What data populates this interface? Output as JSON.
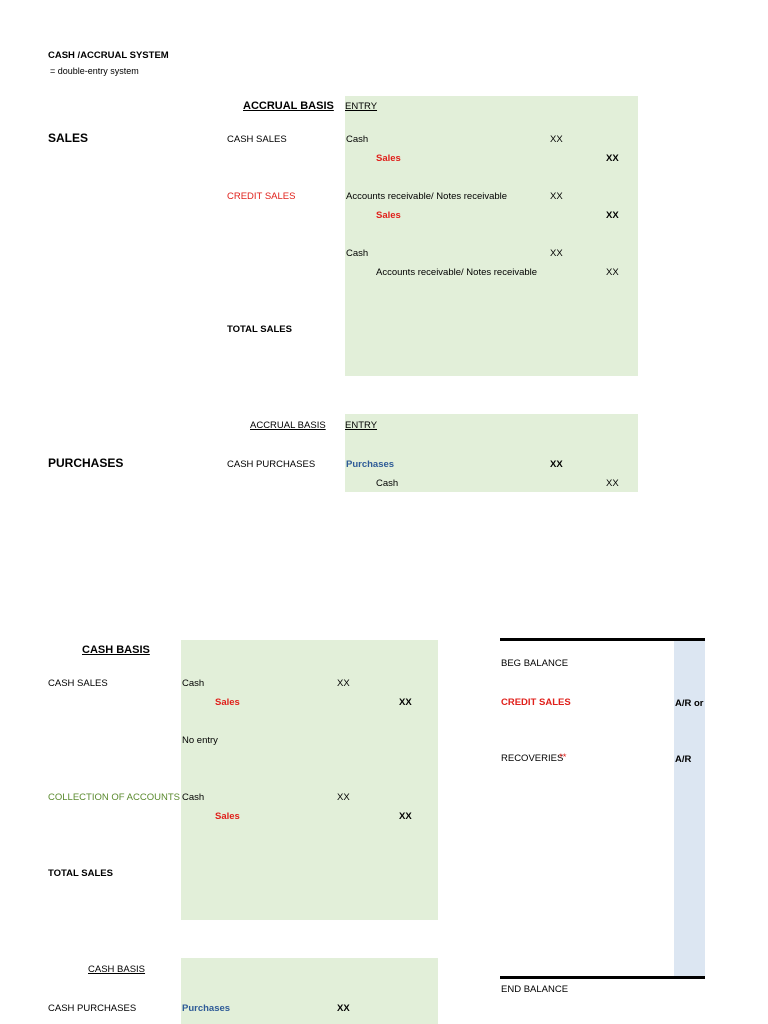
{
  "header": {
    "title": "CASH /ACCRUAL SYSTEM",
    "subtitle": "= double-entry system"
  },
  "accrual_sales": {
    "section": "SALES",
    "basis": "ACCRUAL BASIS",
    "entry": "ENTRY",
    "cash_sales": {
      "label": "CASH SALES",
      "debit": "Cash",
      "debit_amount": "XX",
      "credit": "Sales",
      "credit_amount": "XX"
    },
    "credit_sales": {
      "label": "CREDIT SALES",
      "debit": "Accounts receivable/ Notes receivable",
      "debit_amount": "XX",
      "credit": "Sales",
      "credit_amount": "XX"
    },
    "collection": {
      "debit": "Cash",
      "debit_amount": "XX",
      "credit": "Accounts receivable/ Notes receivable",
      "credit_amount": "XX"
    },
    "total": "TOTAL SALES"
  },
  "accrual_purchases": {
    "section": "PURCHASES",
    "basis": "ACCRUAL BASIS",
    "entry": "ENTRY",
    "cash_purchases": {
      "label": "CASH PURCHASES",
      "debit": "Purchases",
      "debit_amount": "XX",
      "credit": "Cash",
      "credit_amount": "XX"
    }
  },
  "cash_sales": {
    "basis": "CASH BASIS",
    "cash_sales": {
      "label": "CASH SALES",
      "debit": "Cash",
      "debit_amount": "XX",
      "credit": "Sales",
      "credit_amount": "XX"
    },
    "no_entry": "No entry",
    "collection": {
      "label": "COLLECTION OF ACCOUNTS",
      "debit": "Cash",
      "debit_amount": "XX",
      "credit": "Sales",
      "credit_amount": "XX"
    },
    "total": "TOTAL SALES"
  },
  "cash_purchases": {
    "basis": "CASH BASIS",
    "cash_purchases": {
      "label": "CASH PURCHASES",
      "debit": "Purchases",
      "debit_amount": "XX"
    }
  },
  "t_account": {
    "beg": "BEG BALANCE",
    "credit_sales": "CREDIT SALES",
    "credit_sales_note": "A/R or",
    "recoveries": "RECOVERIES",
    "recoveries_mark": "**",
    "recoveries_note": "A/R",
    "end": "END BALANCE"
  }
}
